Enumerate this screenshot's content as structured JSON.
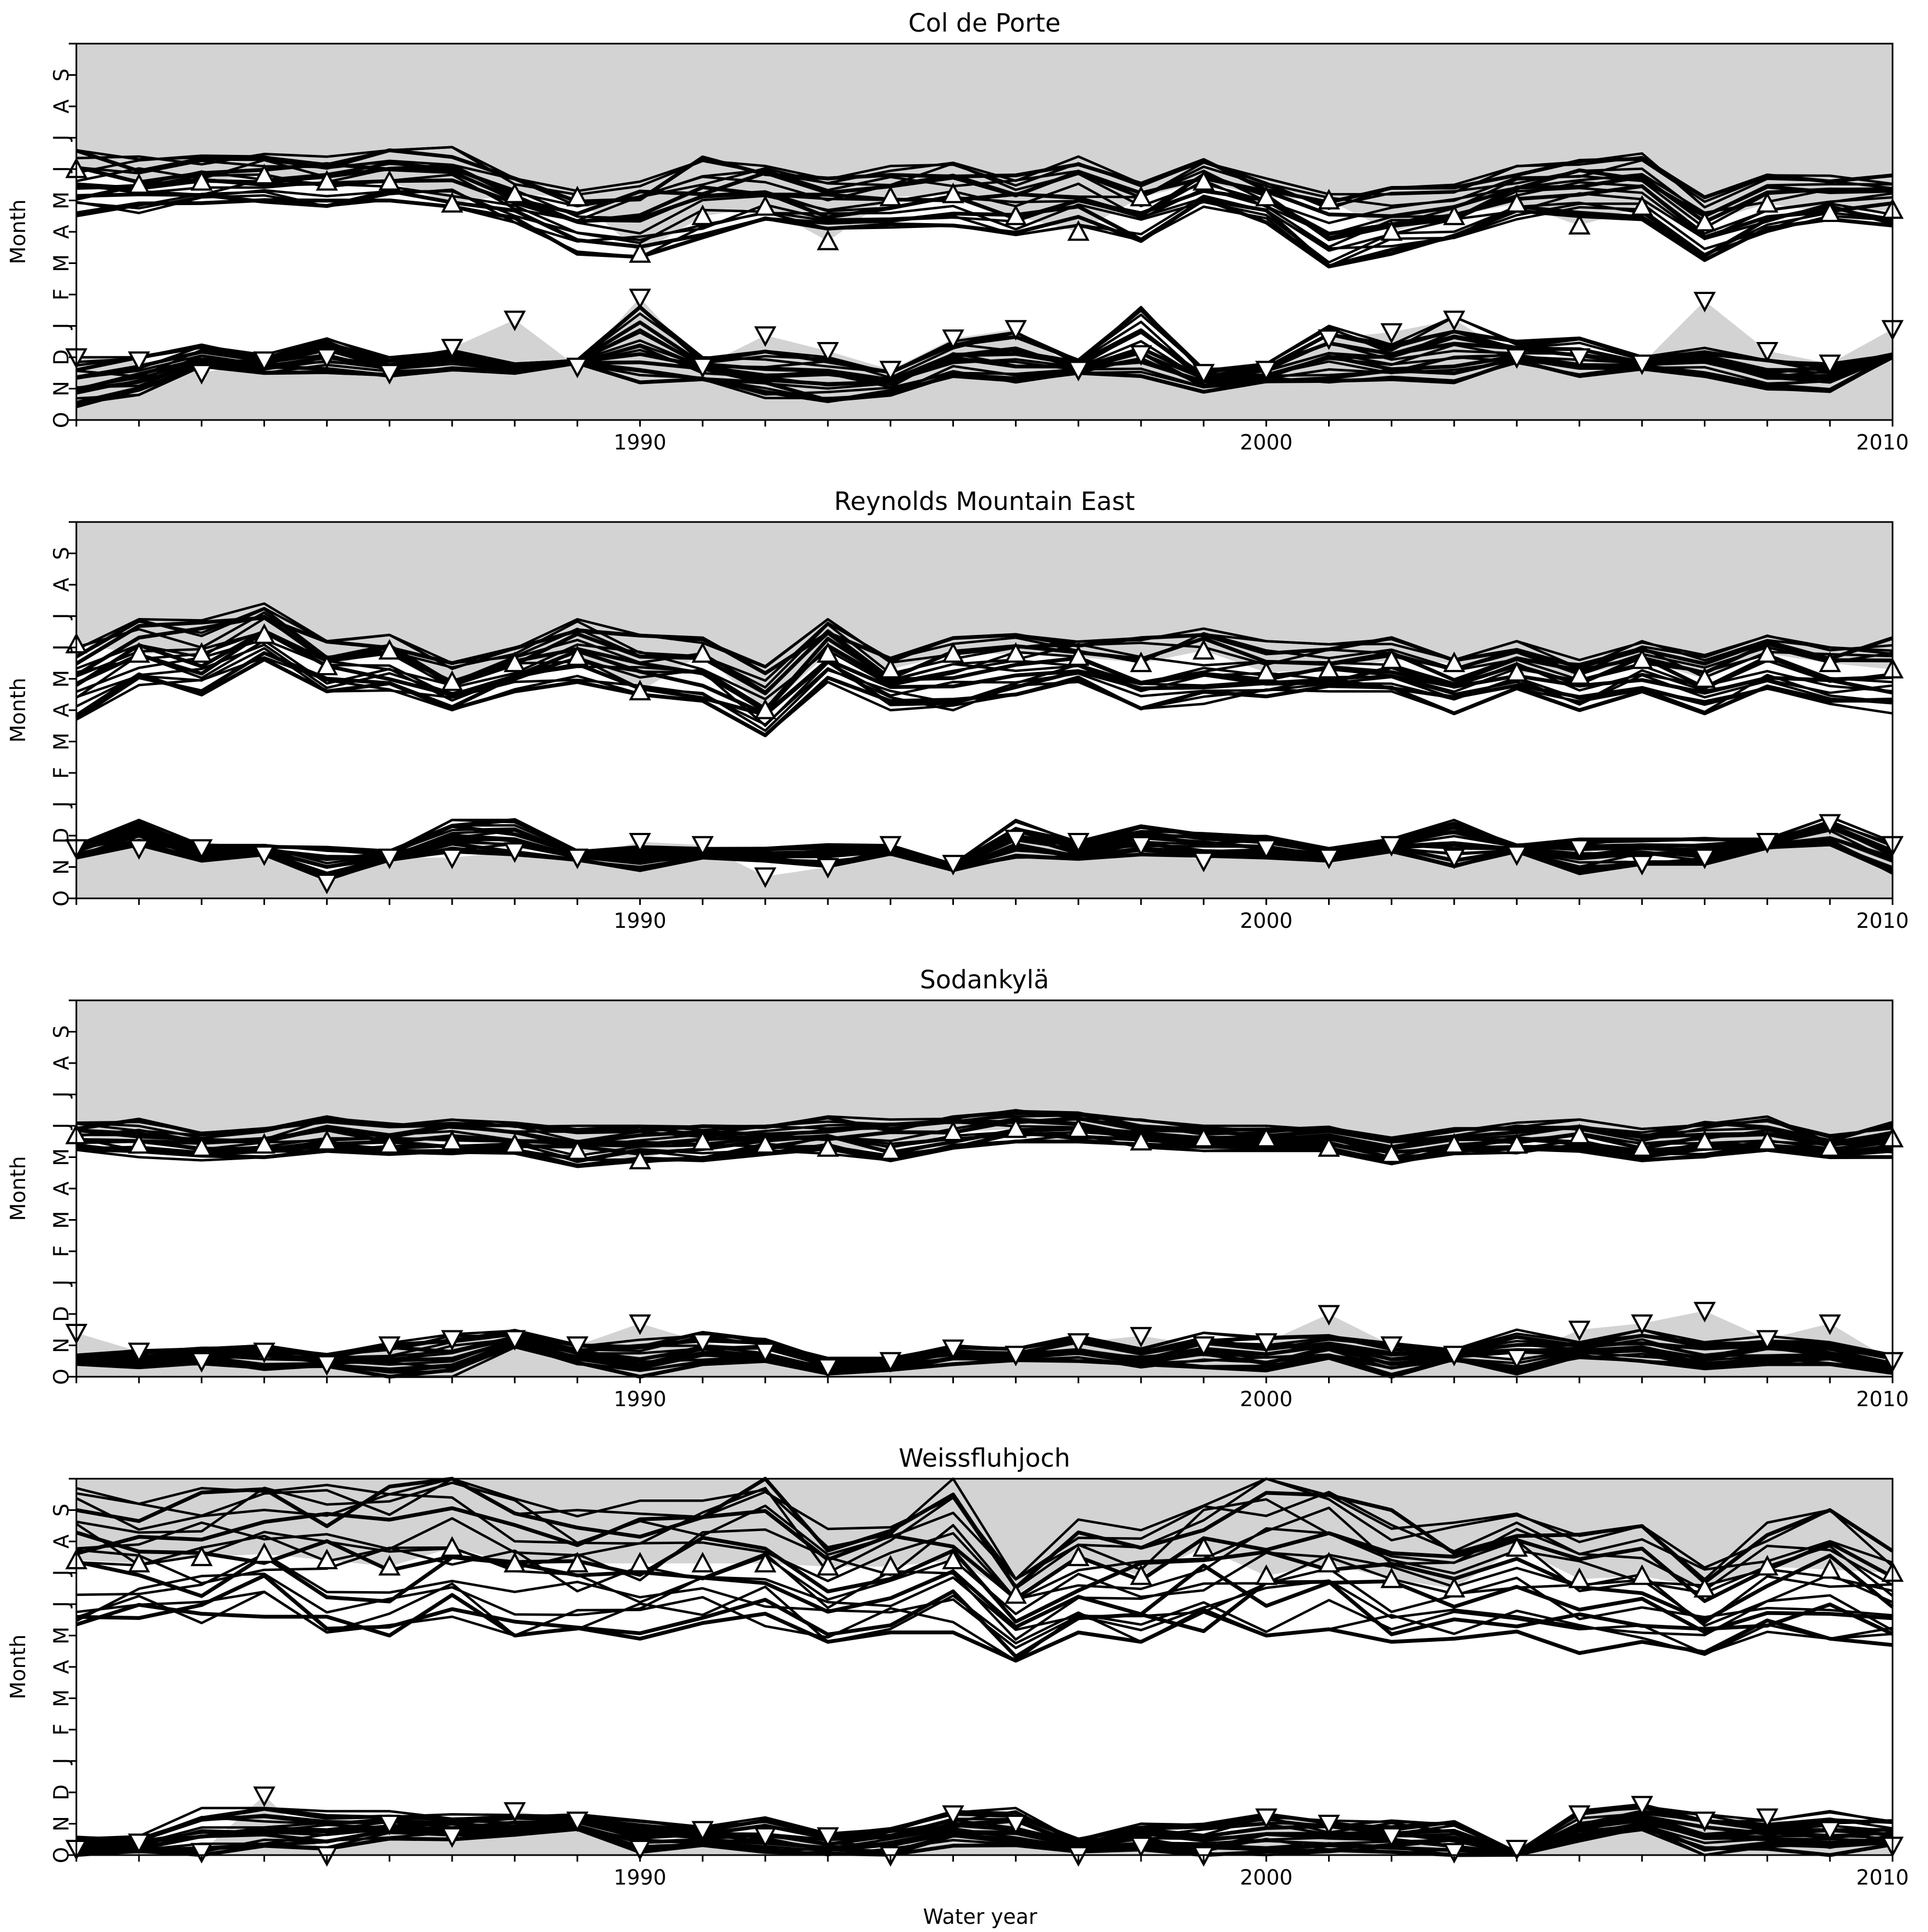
{
  "figure": {
    "xlabel": "Water year",
    "ylabel": "Month"
  },
  "month_ticks": [
    "O",
    "N",
    "D",
    "J",
    "F",
    "M",
    "A",
    "M",
    "J",
    "J",
    "A",
    "S"
  ],
  "year_ticks": [
    "1990",
    "2000",
    "2010"
  ],
  "colors": {
    "band": "#d3d3d3",
    "lines": "#000000",
    "markers_fill": "#ffffff",
    "markers_edge": "#000000"
  },
  "chart_data": [
    {
      "type": "line",
      "title": "Col de Porte",
      "xlabel": "",
      "ylabel": "Month",
      "xlim": [
        1981,
        2010
      ],
      "ylim": [
        0,
        12
      ],
      "observed_melt_out": [
        8.0,
        7.5,
        7.6,
        7.8,
        7.6,
        7.6,
        6.9,
        7.2,
        7.1,
        5.3,
        6.5,
        6.8,
        5.7,
        7.1,
        7.2,
        6.5,
        6.0,
        7.1,
        7.6,
        7.1,
        7.0,
        6.0,
        6.5,
        6.9,
        6.2,
        6.8,
        6.3,
        6.9,
        6.6,
        6.7
      ],
      "observed_snow_onset": [
        2.0,
        1.9,
        1.5,
        1.9,
        2.0,
        1.5,
        2.3,
        3.2,
        1.7,
        3.9,
        1.7,
        2.7,
        2.2,
        1.6,
        2.6,
        2.9,
        1.6,
        2.1,
        1.5,
        1.6,
        2.6,
        2.8,
        3.2,
        2.0,
        2.0,
        1.8,
        3.8,
        2.2,
        1.8,
        2.9
      ],
      "model_melt_envelope": [
        [
          6.5,
          8.6
        ],
        [
          6.6,
          8.4
        ],
        [
          6.9,
          8.5
        ],
        [
          6.9,
          8.6
        ],
        [
          6.8,
          8.4
        ],
        [
          7.0,
          8.6
        ],
        [
          6.8,
          8.7
        ],
        [
          6.3,
          7.7
        ],
        [
          5.3,
          7.4
        ],
        [
          5.2,
          7.6
        ],
        [
          5.8,
          8.4
        ],
        [
          6.4,
          8.1
        ],
        [
          6.1,
          7.8
        ],
        [
          6.1,
          8.1
        ],
        [
          6.2,
          8.2
        ],
        [
          5.9,
          7.8
        ],
        [
          6.2,
          8.4
        ],
        [
          5.7,
          7.6
        ],
        [
          6.8,
          8.3
        ],
        [
          6.3,
          7.7
        ],
        [
          4.8,
          7.2
        ],
        [
          5.3,
          7.4
        ],
        [
          5.8,
          7.5
        ],
        [
          6.4,
          8.1
        ],
        [
          6.5,
          8.3
        ],
        [
          6.4,
          8.5
        ],
        [
          5.1,
          7.1
        ],
        [
          6.0,
          7.8
        ],
        [
          6.4,
          7.8
        ],
        [
          6.2,
          7.8
        ]
      ],
      "model_onset_envelope": [
        [
          0.3,
          2.0
        ],
        [
          0.8,
          2.0
        ],
        [
          1.6,
          2.4
        ],
        [
          1.5,
          2.1
        ],
        [
          1.5,
          2.6
        ],
        [
          1.4,
          2.0
        ],
        [
          1.6,
          2.3
        ],
        [
          1.5,
          1.8
        ],
        [
          1.8,
          1.9
        ],
        [
          1.2,
          3.6
        ],
        [
          1.3,
          2.0
        ],
        [
          0.7,
          2.2
        ],
        [
          0.6,
          2.0
        ],
        [
          0.8,
          1.6
        ],
        [
          1.4,
          2.6
        ],
        [
          1.2,
          2.8
        ],
        [
          1.5,
          1.9
        ],
        [
          1.4,
          3.6
        ],
        [
          0.9,
          1.6
        ],
        [
          1.2,
          1.8
        ],
        [
          1.2,
          3.0
        ],
        [
          1.3,
          2.4
        ],
        [
          1.2,
          3.3
        ],
        [
          1.8,
          2.5
        ],
        [
          1.4,
          2.6
        ],
        [
          1.6,
          2.0
        ],
        [
          1.4,
          2.3
        ],
        [
          1.0,
          1.9
        ],
        [
          0.9,
          1.8
        ],
        [
          2.0,
          2.1
        ]
      ]
    },
    {
      "type": "line",
      "title": "Reynolds Mountain East",
      "xlabel": "",
      "ylabel": "Month",
      "xlim": [
        1981,
        2010
      ],
      "ylim": [
        0,
        12
      ],
      "observed_melt_out": [
        8.1,
        7.8,
        7.8,
        8.4,
        7.4,
        7.9,
        6.9,
        7.5,
        7.7,
        6.6,
        7.8,
        6.0,
        7.8,
        7.3,
        7.8,
        7.8,
        7.7,
        7.5,
        7.9,
        7.2,
        7.3,
        7.6,
        7.5,
        7.2,
        7.1,
        7.6,
        7.0,
        7.8,
        7.5,
        7.3
      ],
      "observed_snow_onset": [
        1.6,
        1.6,
        1.6,
        1.4,
        0.5,
        1.3,
        1.3,
        1.5,
        1.3,
        1.8,
        1.7,
        0.7,
        1.0,
        1.7,
        1.1,
        1.9,
        1.8,
        1.7,
        1.2,
        1.6,
        1.3,
        1.7,
        1.3,
        1.4,
        1.6,
        1.1,
        1.3,
        1.8,
        2.4,
        1.7
      ],
      "model_melt_envelope": [
        [
          5.7,
          8.2
        ],
        [
          6.8,
          8.9
        ],
        [
          6.5,
          9.0
        ],
        [
          7.6,
          9.4
        ],
        [
          6.6,
          8.2
        ],
        [
          6.6,
          8.4
        ],
        [
          6.0,
          7.5
        ],
        [
          6.6,
          8.0
        ],
        [
          6.9,
          8.9
        ],
        [
          6.5,
          8.4
        ],
        [
          6.3,
          8.4
        ],
        [
          5.2,
          7.4
        ],
        [
          6.9,
          8.9
        ],
        [
          6.0,
          7.7
        ],
        [
          6.0,
          8.3
        ],
        [
          6.5,
          8.4
        ],
        [
          6.9,
          8.4
        ],
        [
          5.9,
          8.3
        ],
        [
          6.2,
          8.6
        ],
        [
          6.3,
          8.2
        ],
        [
          6.6,
          8.1
        ],
        [
          6.6,
          8.3
        ],
        [
          5.9,
          7.6
        ],
        [
          6.7,
          8.2
        ],
        [
          6.0,
          7.6
        ],
        [
          6.6,
          8.2
        ],
        [
          5.9,
          7.8
        ],
        [
          6.6,
          8.4
        ],
        [
          6.2,
          8.0
        ],
        [
          5.9,
          8.3
        ]
      ],
      "model_onset_envelope": [
        [
          1.3,
          1.7
        ],
        [
          1.7,
          2.5
        ],
        [
          1.2,
          1.7
        ],
        [
          1.4,
          1.7
        ],
        [
          0.6,
          1.7
        ],
        [
          1.2,
          1.5
        ],
        [
          1.4,
          2.5
        ],
        [
          1.4,
          2.5
        ],
        [
          1.2,
          1.5
        ],
        [
          0.9,
          1.7
        ],
        [
          1.3,
          1.6
        ],
        [
          1.2,
          1.6
        ],
        [
          1.0,
          1.7
        ],
        [
          1.4,
          1.7
        ],
        [
          0.9,
          1.1
        ],
        [
          1.3,
          2.5
        ],
        [
          1.2,
          1.8
        ],
        [
          1.4,
          2.3
        ],
        [
          1.3,
          2.1
        ],
        [
          1.3,
          2.0
        ],
        [
          1.2,
          1.6
        ],
        [
          1.5,
          1.9
        ],
        [
          1.0,
          2.5
        ],
        [
          1.5,
          1.7
        ],
        [
          0.8,
          1.9
        ],
        [
          1.1,
          1.9
        ],
        [
          1.1,
          1.9
        ],
        [
          1.6,
          1.9
        ],
        [
          1.7,
          2.6
        ],
        [
          0.8,
          1.8
        ]
      ]
    },
    {
      "type": "line",
      "title": "Sodankylä",
      "xlabel": "",
      "ylabel": "Month",
      "xlim": [
        1981,
        2010
      ],
      "ylim": [
        0,
        12
      ],
      "observed_melt_out": [
        7.7,
        7.4,
        7.3,
        7.4,
        7.5,
        7.4,
        7.5,
        7.4,
        7.2,
        6.9,
        7.5,
        7.4,
        7.3,
        7.2,
        7.8,
        7.9,
        7.9,
        7.5,
        7.6,
        7.6,
        7.3,
        7.1,
        7.4,
        7.4,
        7.7,
        7.3,
        7.5,
        7.5,
        7.3,
        7.6
      ],
      "observed_snow_onset": [
        1.4,
        0.8,
        0.5,
        0.8,
        0.4,
        1.0,
        1.2,
        1.2,
        1.0,
        1.7,
        1.1,
        0.8,
        0.3,
        0.5,
        0.9,
        0.7,
        1.1,
        1.3,
        1.0,
        1.1,
        2.0,
        1.0,
        0.7,
        0.6,
        1.5,
        1.7,
        2.1,
        1.2,
        1.7,
        0.5
      ],
      "model_melt_envelope": [
        [
          7.2,
          8.1
        ],
        [
          7.0,
          8.2
        ],
        [
          6.9,
          7.8
        ],
        [
          7.0,
          7.9
        ],
        [
          7.2,
          8.3
        ],
        [
          7.1,
          8.1
        ],
        [
          7.1,
          8.2
        ],
        [
          7.1,
          8.1
        ],
        [
          6.7,
          8.0
        ],
        [
          6.8,
          8.0
        ],
        [
          6.9,
          8.1
        ],
        [
          7.1,
          8.0
        ],
        [
          7.1,
          8.3
        ],
        [
          6.9,
          8.2
        ],
        [
          7.3,
          8.3
        ],
        [
          7.5,
          8.5
        ],
        [
          7.5,
          8.4
        ],
        [
          7.3,
          8.2
        ],
        [
          7.2,
          8.0
        ],
        [
          7.2,
          8.0
        ],
        [
          7.2,
          8.0
        ],
        [
          6.8,
          7.6
        ],
        [
          7.1,
          7.9
        ],
        [
          7.1,
          8.1
        ],
        [
          7.2,
          8.2
        ],
        [
          6.9,
          7.9
        ],
        [
          7.0,
          8.1
        ],
        [
          7.1,
          8.3
        ],
        [
          7.0,
          7.7
        ],
        [
          7.0,
          8.1
        ]
      ],
      "model_onset_envelope": [
        [
          0.4,
          0.7
        ],
        [
          0.3,
          0.9
        ],
        [
          0.4,
          0.9
        ],
        [
          0.2,
          1.0
        ],
        [
          0.3,
          0.7
        ],
        [
          0.0,
          1.1
        ],
        [
          0.0,
          1.4
        ],
        [
          0.9,
          1.5
        ],
        [
          0.4,
          1.0
        ],
        [
          0.0,
          1.2
        ],
        [
          0.4,
          1.4
        ],
        [
          0.5,
          1.2
        ],
        [
          0.1,
          0.6
        ],
        [
          0.2,
          0.6
        ],
        [
          0.4,
          1.0
        ],
        [
          0.5,
          0.9
        ],
        [
          0.5,
          1.3
        ],
        [
          0.3,
          0.9
        ],
        [
          0.3,
          1.4
        ],
        [
          0.2,
          1.3
        ],
        [
          0.6,
          1.3
        ],
        [
          0.0,
          1.1
        ],
        [
          0.5,
          0.9
        ],
        [
          0.1,
          1.5
        ],
        [
          0.6,
          1.1
        ],
        [
          0.5,
          1.5
        ],
        [
          0.2,
          1.1
        ],
        [
          0.4,
          1.3
        ],
        [
          0.4,
          1.1
        ],
        [
          0.1,
          0.7
        ]
      ]
    },
    {
      "type": "line",
      "title": "Weissfluhjoch",
      "xlabel": "Water year",
      "ylabel": "Month",
      "xlim": [
        1981,
        2010
      ],
      "ylim": [
        0,
        12
      ],
      "observed_melt_out": [
        9.4,
        9.3,
        9.5,
        9.6,
        9.4,
        9.2,
        9.8,
        9.3,
        9.3,
        9.3,
        9.3,
        9.3,
        9.2,
        9.2,
        9.4,
        8.3,
        9.5,
        8.9,
        9.8,
        8.9,
        9.3,
        8.8,
        8.5,
        9.8,
        8.8,
        8.9,
        8.5,
        9.2,
        9.1,
        9.0
      ],
      "observed_snow_onset": [
        0.2,
        0.4,
        0.1,
        1.9,
        0.0,
        1.0,
        0.6,
        1.4,
        1.1,
        0.2,
        0.8,
        0.6,
        0.6,
        0.0,
        1.3,
        1.0,
        0.0,
        0.3,
        0.0,
        1.2,
        1.0,
        0.6,
        0.1,
        0.2,
        1.3,
        1.6,
        1.1,
        1.2,
        0.8,
        0.3
      ],
      "model_melt_envelope": [
        [
          7.0,
          11.7
        ],
        [
          7.4,
          11.2
        ],
        [
          7.4,
          11.7
        ],
        [
          7.6,
          12.0
        ],
        [
          7.1,
          11.8
        ],
        [
          7.0,
          11.8
        ],
        [
          7.6,
          12.0
        ],
        [
          7.0,
          11.6
        ],
        [
          6.9,
          11.0
        ],
        [
          6.9,
          11.3
        ],
        [
          7.4,
          11.3
        ],
        [
          7.3,
          12.0
        ],
        [
          6.8,
          10.4
        ],
        [
          7.0,
          11.0
        ],
        [
          7.1,
          12.0
        ],
        [
          6.2,
          8.8
        ],
        [
          7.1,
          10.7
        ],
        [
          6.8,
          10.4
        ],
        [
          7.1,
          11.4
        ],
        [
          7.0,
          12.0
        ],
        [
          7.2,
          12.0
        ],
        [
          6.8,
          11.0
        ],
        [
          6.9,
          10.6
        ],
        [
          7.1,
          11.0
        ],
        [
          6.4,
          10.4
        ],
        [
          6.8,
          10.5
        ],
        [
          6.2,
          9.2
        ],
        [
          7.0,
          10.6
        ],
        [
          6.9,
          11.0
        ],
        [
          6.7,
          9.7
        ]
      ],
      "model_onset_envelope": [
        [
          0.0,
          0.6
        ],
        [
          0.1,
          0.6
        ],
        [
          0.0,
          1.5
        ],
        [
          0.2,
          1.5
        ],
        [
          0.2,
          1.4
        ],
        [
          0.5,
          1.4
        ],
        [
          0.5,
          1.3
        ],
        [
          0.6,
          1.3
        ],
        [
          0.8,
          1.3
        ],
        [
          0.1,
          1.1
        ],
        [
          0.3,
          0.9
        ],
        [
          0.1,
          1.2
        ],
        [
          0.0,
          0.7
        ],
        [
          0.0,
          0.9
        ],
        [
          0.3,
          1.4
        ],
        [
          0.2,
          1.5
        ],
        [
          0.1,
          0.5
        ],
        [
          0.1,
          1.0
        ],
        [
          0.0,
          1.0
        ],
        [
          0.0,
          1.3
        ],
        [
          0.0,
          1.1
        ],
        [
          0.1,
          1.1
        ],
        [
          0.0,
          1.2
        ],
        [
          0.0,
          0.1
        ],
        [
          0.4,
          1.4
        ],
        [
          0.8,
          1.6
        ],
        [
          0.0,
          1.3
        ],
        [
          0.2,
          1.1
        ],
        [
          0.0,
          1.4
        ],
        [
          0.3,
          1.1
        ]
      ]
    }
  ]
}
